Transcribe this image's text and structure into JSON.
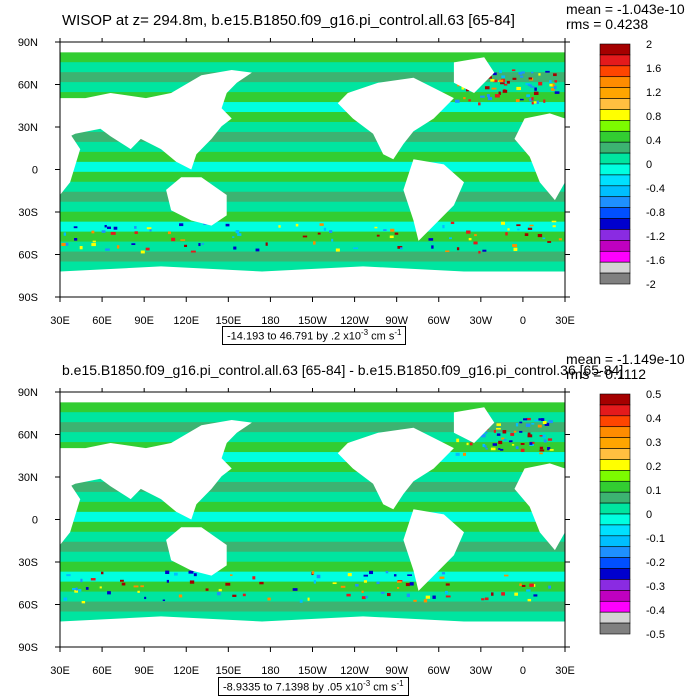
{
  "chart_data": [
    {
      "type": "heatmap",
      "title": "WISOP at z= 294.8m, b.e15.B1850.f09_g16.pi_control.all.63 [65-84]",
      "mean_text": "mean = -1.043e-10",
      "rms_text": "rms = 0.4238",
      "range_text": "-14.193 to 46.791 by .2 x10",
      "range_exp": "-3",
      "range_units": " cm s",
      "range_units_exp": "-1",
      "x_ticks": [
        "30E",
        "60E",
        "90E",
        "120E",
        "150E",
        "180",
        "150W",
        "120W",
        "90W",
        "60W",
        "30W",
        "0",
        "30E"
      ],
      "y_ticks": [
        "90N",
        "60N",
        "30N",
        "0",
        "30S",
        "60S",
        "90S"
      ],
      "colorbar_levels": [
        "2",
        "1.6",
        "1.2",
        "0.8",
        "0.4",
        "0",
        "-0.4",
        "-0.8",
        "-1.2",
        "-1.6",
        "-2"
      ],
      "colorbar_min": -2,
      "colorbar_max": 2,
      "colors": [
        "#A50000",
        "#E41A1C",
        "#FF4500",
        "#FF8C00",
        "#FFA500",
        "#FFC040",
        "#FFFF00",
        "#7CFC00",
        "#32CD32",
        "#3CB371",
        "#00E5A0",
        "#00FFE0",
        "#00E0FF",
        "#00BFFF",
        "#1E90FF",
        "#0050FF",
        "#0000CD",
        "#8A2BE2",
        "#C000C0",
        "#FF00FF",
        "#D3D3D3",
        "#808080"
      ]
    },
    {
      "type": "heatmap",
      "title": "b.e15.B1850.f09_g16.pi_control.all.63 [65-84] - b.e15.B1850.f09_g16.pi_control.36 [65-84]",
      "mean_text": "mean = -1.149e-10",
      "rms_text": "rms = 0.1112",
      "range_text": "-8.9335 to 7.1398 by .05 x10",
      "range_exp": "-3",
      "range_units": " cm s",
      "range_units_exp": "-1",
      "x_ticks": [
        "30E",
        "60E",
        "90E",
        "120E",
        "150E",
        "180",
        "150W",
        "120W",
        "90W",
        "60W",
        "30W",
        "0",
        "30E"
      ],
      "y_ticks": [
        "90N",
        "60N",
        "30N",
        "0",
        "30S",
        "60S",
        "90S"
      ],
      "colorbar_levels": [
        "0.5",
        "0.4",
        "0.3",
        "0.2",
        "0.1",
        "0",
        "-0.1",
        "-0.2",
        "-0.3",
        "-0.4",
        "-0.5"
      ],
      "colorbar_min": -0.5,
      "colorbar_max": 0.5,
      "colors": [
        "#A50000",
        "#E41A1C",
        "#FF4500",
        "#FF8C00",
        "#FFA500",
        "#FFC040",
        "#FFFF00",
        "#7CFC00",
        "#32CD32",
        "#3CB371",
        "#00E5A0",
        "#00FFE0",
        "#00E0FF",
        "#00BFFF",
        "#1E90FF",
        "#0050FF",
        "#0000CD",
        "#8A2BE2",
        "#C000C0",
        "#FF00FF",
        "#D3D3D3",
        "#808080"
      ]
    }
  ]
}
